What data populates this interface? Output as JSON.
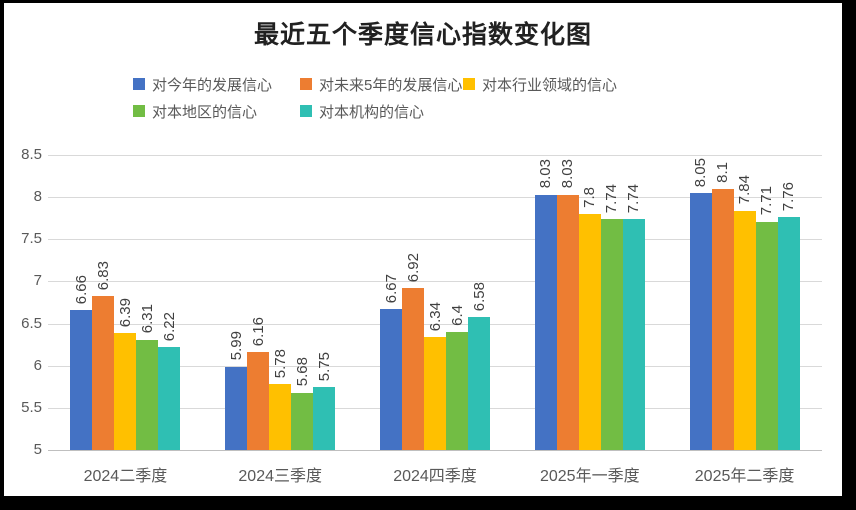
{
  "title": "最近五个季度信心指数变化图",
  "chart_data": {
    "type": "bar",
    "title": "最近五个季度信心指数变化图",
    "categories": [
      "2024二季度",
      "2024三季度",
      "2024四季度",
      "2025年一季度",
      "2025年二季度"
    ],
    "series": [
      {
        "name": "对今年的发展信心",
        "color": "#4472C4",
        "values": [
          6.66,
          5.99,
          6.67,
          8.03,
          8.05
        ]
      },
      {
        "name": "对未来5年的发展信心",
        "color": "#ED7D31",
        "values": [
          6.83,
          6.16,
          6.92,
          8.03,
          8.1
        ]
      },
      {
        "name": "对本行业领域的信心",
        "color": "#FFC000",
        "values": [
          6.39,
          5.78,
          6.34,
          7.8,
          7.84
        ]
      },
      {
        "name": "对本地区的信心",
        "color": "#72BD44",
        "values": [
          6.31,
          5.68,
          6.4,
          7.74,
          7.71
        ]
      },
      {
        "name": "对本机构的信心",
        "color": "#2FBFB3",
        "values": [
          6.22,
          5.75,
          6.58,
          7.74,
          7.76
        ]
      }
    ],
    "ylim": [
      5,
      8.5
    ],
    "ytick_step": 0.5,
    "yticks": [
      "5",
      "5.5",
      "6",
      "6.5",
      "7",
      "7.5",
      "8",
      "8.5"
    ],
    "grid": true,
    "legend_position": "top",
    "data_labels": true,
    "xlabel": "",
    "ylabel": ""
  },
  "colors": {
    "background": "#ffffff",
    "border": "#000000",
    "gridline": "#d9d9d9",
    "axis_line": "#bfbfbf",
    "tick_text": "#595959",
    "legend_text": "#595959",
    "data_label_text": "#404040",
    "title_text": "#212121"
  }
}
